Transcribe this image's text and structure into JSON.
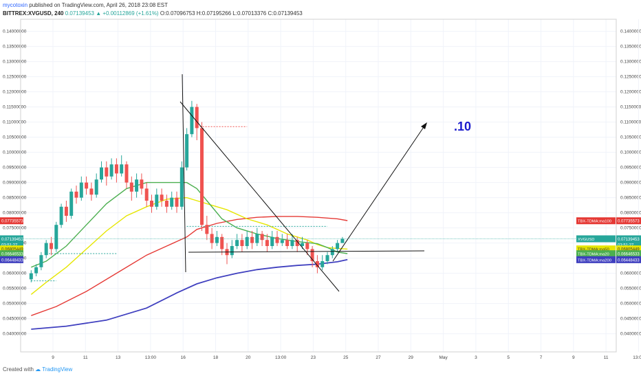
{
  "header": {
    "author": "mycotoxin",
    "published_text": "published on TradingView.com, April 26, 2018 23:08 EST",
    "symbol_line": "BITTREX:XVGUSD, 240",
    "last_price": "0.07139453",
    "change": "▲ +0.00112869 (+1.61%)",
    "open": "O:0.07096753",
    "high": "H:0.07195266",
    "low": "L:0.07013376",
    "close": "C:0.07139453"
  },
  "footer": {
    "created_with": "Created with",
    "brand": "TradingView"
  },
  "colors": {
    "up": "#26a69a",
    "down": "#ef5350",
    "ma20": "#4caf50",
    "ma50": "#e6e600",
    "ma100": "#e53935",
    "ma200": "#3f3fbf",
    "annotation": "#1a1acc"
  },
  "chart_data": {
    "type": "line",
    "y_ticks": [
      "0.14000000",
      "0.13500000",
      "0.13000000",
      "0.12500000",
      "0.12000000",
      "0.11500000",
      "0.11000000",
      "0.10500000",
      "0.10000000",
      "0.09500000",
      "0.09000000",
      "0.08500000",
      "0.08000000",
      "0.07500000",
      "0.07000000",
      "0.06500000",
      "0.06000000",
      "0.05500000",
      "0.05000000",
      "0.04500000",
      "0.04000000"
    ],
    "ylim": [
      0.034,
      0.144
    ],
    "x_ticks": [
      "9",
      "11",
      "13",
      "13:00",
      "16",
      "18",
      "20",
      "13:00",
      "23",
      "25",
      "27",
      "29",
      "May",
      "3",
      "5",
      "7",
      "9",
      "11",
      "13:00"
    ],
    "price_labels": [
      {
        "text": "0.07735573",
        "value": 0.07735573,
        "color": "#e53935",
        "side": "both"
      },
      {
        "text": "0.07139453",
        "value": 0.07139453,
        "color": "#26a69a",
        "side": "both"
      },
      {
        "text": "03:51:27",
        "value": 0.0695,
        "color": "#26a69a",
        "side": "both"
      },
      {
        "text": "0.06805449",
        "value": 0.06805449,
        "color": "#e6e600",
        "side": "both"
      },
      {
        "text": "0.06646533",
        "value": 0.06646533,
        "color": "#4caf50",
        "side": "both"
      },
      {
        "text": "0.06448433",
        "value": 0.06448433,
        "color": "#3f3fbf",
        "side": "both"
      }
    ],
    "legend_tags": [
      {
        "text": "TBX-TDMA:ma100",
        "value": 0.07735573,
        "color": "#e53935"
      },
      {
        "text": "XVGUSD",
        "value": 0.07139453,
        "color": "#26a69a"
      },
      {
        "text": "TBX-TDMA:ma50",
        "value": 0.06805449,
        "color": "#e6e600"
      },
      {
        "text": "TBX-TDMA:ma20",
        "value": 0.06646533,
        "color": "#4caf50"
      },
      {
        "text": "TBX-TDMA:ma200",
        "value": 0.06448433,
        "color": "#3f3fbf"
      }
    ],
    "annotation": ".10",
    "ma20": [
      [
        0.5,
        0.062
      ],
      [
        2,
        0.064
      ],
      [
        4,
        0.069
      ],
      [
        6,
        0.076
      ],
      [
        8,
        0.083
      ],
      [
        10,
        0.088
      ],
      [
        12,
        0.09
      ],
      [
        14,
        0.09
      ],
      [
        16,
        0.09
      ],
      [
        17,
        0.088
      ],
      [
        18,
        0.084
      ],
      [
        19.5,
        0.078
      ],
      [
        21,
        0.075
      ],
      [
        23,
        0.073
      ],
      [
        25,
        0.0715
      ],
      [
        27,
        0.0705
      ],
      [
        29,
        0.0698
      ],
      [
        30,
        0.0685
      ],
      [
        31,
        0.067
      ],
      [
        32,
        0.0665
      ]
    ],
    "ma50": [
      [
        0.5,
        0.053
      ],
      [
        2,
        0.057
      ],
      [
        4,
        0.062
      ],
      [
        6,
        0.068
      ],
      [
        8,
        0.074
      ],
      [
        10,
        0.079
      ],
      [
        12,
        0.082
      ],
      [
        14,
        0.0845
      ],
      [
        16,
        0.085
      ],
      [
        17,
        0.084
      ],
      [
        18,
        0.083
      ],
      [
        20,
        0.081
      ],
      [
        22,
        0.078
      ],
      [
        24,
        0.076
      ],
      [
        26,
        0.073
      ],
      [
        28,
        0.071
      ],
      [
        29,
        0.0695
      ],
      [
        30,
        0.0685
      ],
      [
        31,
        0.0682
      ],
      [
        32,
        0.068
      ]
    ],
    "ma100": [
      [
        0.5,
        0.046
      ],
      [
        3,
        0.049
      ],
      [
        6,
        0.054
      ],
      [
        9,
        0.06
      ],
      [
        12,
        0.066
      ],
      [
        14,
        0.069
      ],
      [
        16,
        0.072
      ],
      [
        17,
        0.0745
      ],
      [
        19,
        0.0765
      ],
      [
        21,
        0.0778
      ],
      [
        23,
        0.0785
      ],
      [
        25,
        0.0788
      ],
      [
        27,
        0.0788
      ],
      [
        29,
        0.0785
      ],
      [
        31,
        0.078
      ],
      [
        32,
        0.0774
      ]
    ],
    "ma200": [
      [
        0.5,
        0.0415
      ],
      [
        4,
        0.0425
      ],
      [
        8,
        0.0445
      ],
      [
        12,
        0.0485
      ],
      [
        15,
        0.0535
      ],
      [
        17,
        0.0565
      ],
      [
        19,
        0.0585
      ],
      [
        21,
        0.06
      ],
      [
        23,
        0.0612
      ],
      [
        25,
        0.062
      ],
      [
        27,
        0.0626
      ],
      [
        29,
        0.063
      ],
      [
        31,
        0.0638
      ],
      [
        32,
        0.0645
      ]
    ],
    "candles": [
      [
        0.5,
        0.058,
        0.06,
        0.057,
        0.061
      ],
      [
        1,
        0.06,
        0.062,
        0.059,
        0.063
      ],
      [
        1.5,
        0.062,
        0.066,
        0.061,
        0.067
      ],
      [
        2,
        0.066,
        0.07,
        0.065,
        0.071
      ],
      [
        2.5,
        0.07,
        0.068,
        0.066,
        0.072
      ],
      [
        3,
        0.068,
        0.076,
        0.067,
        0.077
      ],
      [
        3.5,
        0.076,
        0.082,
        0.075,
        0.083
      ],
      [
        4,
        0.082,
        0.079,
        0.077,
        0.084
      ],
      [
        4.5,
        0.079,
        0.087,
        0.078,
        0.088
      ],
      [
        5,
        0.087,
        0.085,
        0.083,
        0.089
      ],
      [
        5.5,
        0.085,
        0.09,
        0.084,
        0.092
      ],
      [
        6,
        0.09,
        0.088,
        0.086,
        0.092
      ],
      [
        6.5,
        0.088,
        0.086,
        0.084,
        0.09
      ],
      [
        7,
        0.086,
        0.091,
        0.085,
        0.093
      ],
      [
        7.5,
        0.091,
        0.095,
        0.09,
        0.097
      ],
      [
        8,
        0.095,
        0.092,
        0.089,
        0.097
      ],
      [
        8.5,
        0.092,
        0.096,
        0.091,
        0.098
      ],
      [
        9,
        0.096,
        0.093,
        0.09,
        0.098
      ],
      [
        9.5,
        0.093,
        0.096,
        0.092,
        0.099
      ],
      [
        10,
        0.096,
        0.09,
        0.088,
        0.097
      ],
      [
        10.5,
        0.09,
        0.087,
        0.084,
        0.092
      ],
      [
        11,
        0.087,
        0.091,
        0.085,
        0.093
      ],
      [
        11.5,
        0.091,
        0.088,
        0.086,
        0.093
      ],
      [
        12,
        0.088,
        0.084,
        0.082,
        0.09
      ],
      [
        12.5,
        0.084,
        0.082,
        0.08,
        0.086
      ],
      [
        13,
        0.082,
        0.086,
        0.081,
        0.088
      ],
      [
        13.5,
        0.086,
        0.084,
        0.082,
        0.088
      ],
      [
        14,
        0.084,
        0.082,
        0.08,
        0.086
      ],
      [
        14.5,
        0.082,
        0.085,
        0.081,
        0.087
      ],
      [
        15,
        0.085,
        0.082,
        0.08,
        0.087
      ],
      [
        15.5,
        0.082,
        0.095,
        0.081,
        0.097
      ],
      [
        16,
        0.095,
        0.106,
        0.094,
        0.108
      ],
      [
        16.5,
        0.106,
        0.115,
        0.105,
        0.117
      ],
      [
        17,
        0.115,
        0.108,
        0.104,
        0.116
      ],
      [
        17.5,
        0.108,
        0.076,
        0.074,
        0.11
      ],
      [
        18,
        0.076,
        0.073,
        0.071,
        0.079
      ],
      [
        18.5,
        0.073,
        0.07,
        0.068,
        0.075
      ],
      [
        19,
        0.07,
        0.072,
        0.069,
        0.074
      ],
      [
        19.5,
        0.072,
        0.068,
        0.066,
        0.073
      ],
      [
        20,
        0.068,
        0.066,
        0.063,
        0.07
      ],
      [
        20.5,
        0.066,
        0.069,
        0.065,
        0.071
      ],
      [
        21,
        0.069,
        0.071,
        0.068,
        0.073
      ],
      [
        21.5,
        0.071,
        0.069,
        0.067,
        0.073
      ],
      [
        22,
        0.069,
        0.072,
        0.068,
        0.074
      ],
      [
        22.5,
        0.072,
        0.07,
        0.068,
        0.074
      ],
      [
        23,
        0.07,
        0.073,
        0.069,
        0.075
      ],
      [
        23.5,
        0.073,
        0.071,
        0.069,
        0.074
      ],
      [
        24,
        0.071,
        0.069,
        0.067,
        0.073
      ],
      [
        24.5,
        0.069,
        0.072,
        0.068,
        0.074
      ],
      [
        25,
        0.072,
        0.07,
        0.069,
        0.074
      ],
      [
        25.5,
        0.07,
        0.071,
        0.069,
        0.073
      ],
      [
        26,
        0.071,
        0.069,
        0.068,
        0.073
      ],
      [
        26.5,
        0.069,
        0.071,
        0.068,
        0.073
      ],
      [
        27,
        0.071,
        0.069,
        0.067,
        0.072
      ],
      [
        27.5,
        0.069,
        0.07,
        0.068,
        0.072
      ],
      [
        28,
        0.07,
        0.068,
        0.066,
        0.071
      ],
      [
        28.5,
        0.068,
        0.064,
        0.062,
        0.069
      ],
      [
        29,
        0.064,
        0.062,
        0.06,
        0.066
      ],
      [
        29.5,
        0.062,
        0.064,
        0.061,
        0.066
      ],
      [
        30,
        0.064,
        0.066,
        0.063,
        0.067
      ],
      [
        30.5,
        0.066,
        0.068,
        0.065,
        0.069
      ],
      [
        31,
        0.068,
        0.07,
        0.067,
        0.071
      ],
      [
        31.5,
        0.07,
        0.0714,
        0.0701,
        0.072
      ]
    ]
  }
}
